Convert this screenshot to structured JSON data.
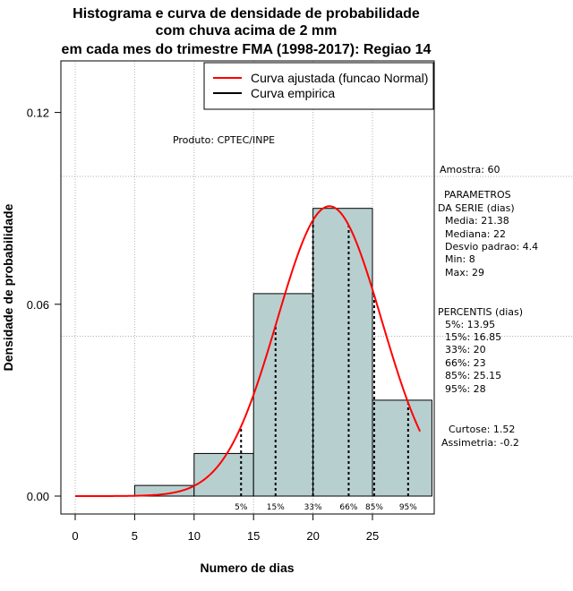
{
  "chart_data": {
    "type": "bar",
    "title_lines": [
      "Histograma e curva de densidade de probabilidade",
      "com chuva acima de 2 mm",
      "em cada mes do trimestre FMA (1998-2017): Regiao 14"
    ],
    "xlabel": "Numero de dias",
    "ylabel": "Densidade de probabilidade",
    "xlim": [
      -2,
      30
    ],
    "ylim": [
      0,
      0.13
    ],
    "x_ticks": [
      0,
      5,
      10,
      15,
      20,
      25
    ],
    "y_ticks": [
      0.0,
      0.06,
      0.12
    ],
    "y_tick_labels": [
      "0.00",
      "0.06",
      "0.12"
    ],
    "grid_x": [
      0,
      5,
      10,
      15,
      20,
      25
    ],
    "grid_y": [
      0.05,
      0.1
    ],
    "bins": [
      {
        "start": 5,
        "end": 10,
        "density": 0.00333
      },
      {
        "start": 10,
        "end": 15,
        "density": 0.01333
      },
      {
        "start": 15,
        "end": 20,
        "density": 0.06333
      },
      {
        "start": 20,
        "end": 25,
        "density": 0.09
      },
      {
        "start": 25,
        "end": 30,
        "density": 0.03
      }
    ],
    "normal_fit": {
      "mean": 21.38,
      "sd": 4.4,
      "x_from": 0,
      "x_to": 29
    },
    "percentiles": [
      {
        "label": "5%",
        "value": 13.95
      },
      {
        "label": "15%",
        "value": 16.85
      },
      {
        "label": "33%",
        "value": 20
      },
      {
        "label": "66%",
        "value": 23
      },
      {
        "label": "85%",
        "value": 25.15
      },
      {
        "label": "95%",
        "value": 28
      }
    ],
    "legend": [
      {
        "label": "Curva ajustada (funcao Normal)",
        "color": "#ff0000"
      },
      {
        "label": "Curva empirica",
        "color": "#000000"
      }
    ],
    "legend_position": "top-right",
    "product_label": "Produto: CPTEC/INPE",
    "bar_color": "#b8cfcf",
    "curve_color": "#ff0000"
  },
  "stats": {
    "amostra": "Amostra: 60",
    "parametros_title_1": "PARAMETROS",
    "parametros_title_2": "DA SERIE (dias)",
    "media": "Media: 21.38",
    "mediana": "Mediana: 22",
    "desvio": "Desvio padrao: 4.4",
    "min": "Min: 8",
    "max": "Max: 29",
    "percentis_title": "PERCENTIS (dias)",
    "p5": "5%: 13.95",
    "p15": "15%: 16.85",
    "p33": "33%: 20",
    "p66": "66%: 23",
    "p85": "85%: 25.15",
    "p95": "95%: 28",
    "curtose": "Curtose: 1.52",
    "assimetria": "Assimetria: -0.2"
  }
}
